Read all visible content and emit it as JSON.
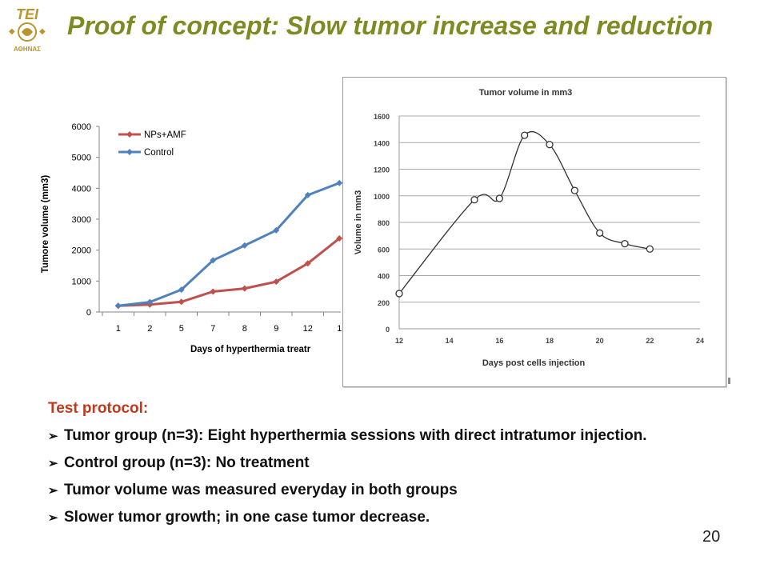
{
  "logo": {
    "text_top": "TEI",
    "text_bottom": "ΑΘΗΝΑΣ",
    "color": "#b8962e"
  },
  "title": "Proof of concept: Slow tumor increase and reduction",
  "chart_data": [
    {
      "type": "line",
      "title": "",
      "xlabel": "Days of hyperthermia treatr",
      "ylabel": "Tumore volume (mm3)",
      "categories": [
        "1",
        "2",
        "5",
        "7",
        "8",
        "9",
        "12",
        "1"
      ],
      "ylim": [
        0,
        6000
      ],
      "yticks": [
        0,
        1000,
        2000,
        3000,
        4000,
        5000,
        6000
      ],
      "legend_position": "top-left",
      "grid": false,
      "series": [
        {
          "name": "NPs+AMF",
          "color": "#c0504d",
          "values": [
            200,
            240,
            330,
            660,
            760,
            980,
            1570,
            2380
          ]
        },
        {
          "name": "Control",
          "color": "#4f81bd",
          "values": [
            200,
            320,
            720,
            1670,
            2150,
            2640,
            3780,
            4170
          ]
        }
      ]
    },
    {
      "type": "line",
      "title": "Tumor volume in mm3",
      "xlabel": "Days post cells injection",
      "ylabel": "Volume in mm3",
      "xlim": [
        12,
        24
      ],
      "ylim": [
        0,
        1600
      ],
      "xticks": [
        12,
        14,
        16,
        18,
        20,
        22,
        24
      ],
      "yticks": [
        0,
        200,
        400,
        600,
        800,
        1000,
        1200,
        1400,
        1600
      ],
      "grid": true,
      "series": [
        {
          "color": "#333333",
          "x": [
            12,
            15,
            16,
            17,
            18,
            19,
            20,
            21,
            22
          ],
          "y": [
            265,
            970,
            980,
            1455,
            1385,
            1040,
            720,
            640,
            600
          ]
        }
      ]
    }
  ],
  "protocol": {
    "heading": "Test protocol:",
    "items": [
      "Tumor group (n=3): Eight hyperthermia sessions with direct intratumor injection.",
      "Control group (n=3): No treatment",
      "Tumor volume was measured everyday in both groups",
      "Slower tumor growth; in one case tumor decrease."
    ],
    "bullet": "➢"
  },
  "page_number": "20"
}
